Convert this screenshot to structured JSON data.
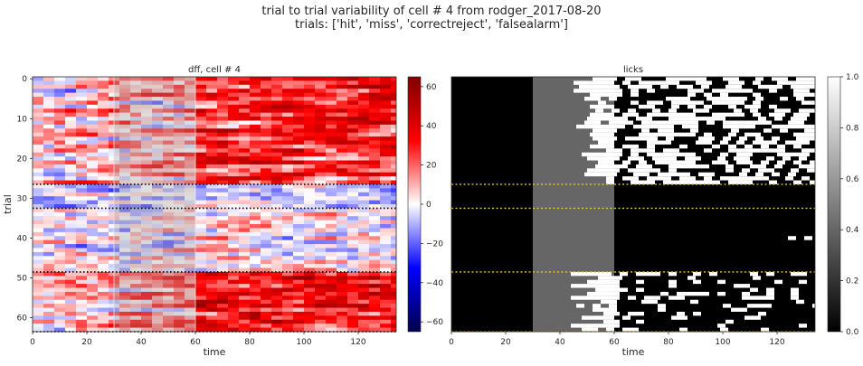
{
  "figure": {
    "title_line1": "trial to trial variability of cell # 4 from rodger_2017-08-20",
    "title_line2": "trials:  ['hit', 'miss', 'correctreject', 'falsealarm']"
  },
  "chart_data": [
    {
      "type": "heatmap",
      "title": "dff, cell # 4",
      "xlabel": "time",
      "ylabel": "trial",
      "xlim": [
        0,
        134
      ],
      "ylim": [
        64,
        0
      ],
      "xticks": [
        0,
        20,
        40,
        60,
        80,
        100,
        120
      ],
      "yticks": [
        0,
        10,
        20,
        30,
        40,
        50,
        60
      ],
      "colormap": "seismic",
      "colorbar": {
        "vmin": -65,
        "vmax": 65,
        "ticks": [
          -60,
          -40,
          -20,
          0,
          20,
          40,
          60
        ],
        "tick_labels": [
          "−60",
          "−40",
          "−20",
          "0",
          "20",
          "40",
          "60"
        ]
      },
      "shaded_interval": [
        30,
        60
      ],
      "trial_group_dividers": [
        27,
        33,
        49,
        64
      ],
      "divider_color": "#000000",
      "rows": [
        {
          "trials": [
            0,
            27
          ],
          "early": 4,
          "late": 28,
          "var": 16
        },
        {
          "trials": [
            27,
            33
          ],
          "early": -6,
          "late": -8,
          "var": 12
        },
        {
          "trials": [
            33,
            49
          ],
          "early": -2,
          "late": 2,
          "var": 14
        },
        {
          "trials": [
            49,
            64
          ],
          "early": 4,
          "late": 34,
          "var": 16
        }
      ]
    },
    {
      "type": "heatmap",
      "title": "licks",
      "xlabel": "time",
      "xlim": [
        0,
        134
      ],
      "ylim": [
        64,
        0
      ],
      "xticks": [
        0,
        20,
        40,
        60,
        80,
        100,
        120
      ],
      "colormap": "gray",
      "colorbar": {
        "vmin": 0,
        "vmax": 1,
        "ticks": [
          0,
          0.2,
          0.4,
          0.6,
          0.8,
          1.0
        ],
        "tick_labels": [
          "0.0",
          "0.2",
          "0.4",
          "0.6",
          "0.8",
          "1.0"
        ]
      },
      "shaded_interval": [
        30,
        60
      ],
      "shaded_value": 0.4,
      "trial_group_dividers": [
        27,
        33,
        49,
        64
      ],
      "divider_color": "#e8c42a",
      "lick_groups": [
        {
          "trials": [
            0,
            27
          ],
          "onset": 45,
          "density": 0.55
        },
        {
          "trials": [
            27,
            33
          ],
          "onset": null,
          "density": 0
        },
        {
          "trials": [
            33,
            49
          ],
          "onset": 117,
          "density": 0.0
        },
        {
          "trials": [
            49,
            64
          ],
          "onset": 44,
          "density": 0.22
        }
      ]
    }
  ]
}
